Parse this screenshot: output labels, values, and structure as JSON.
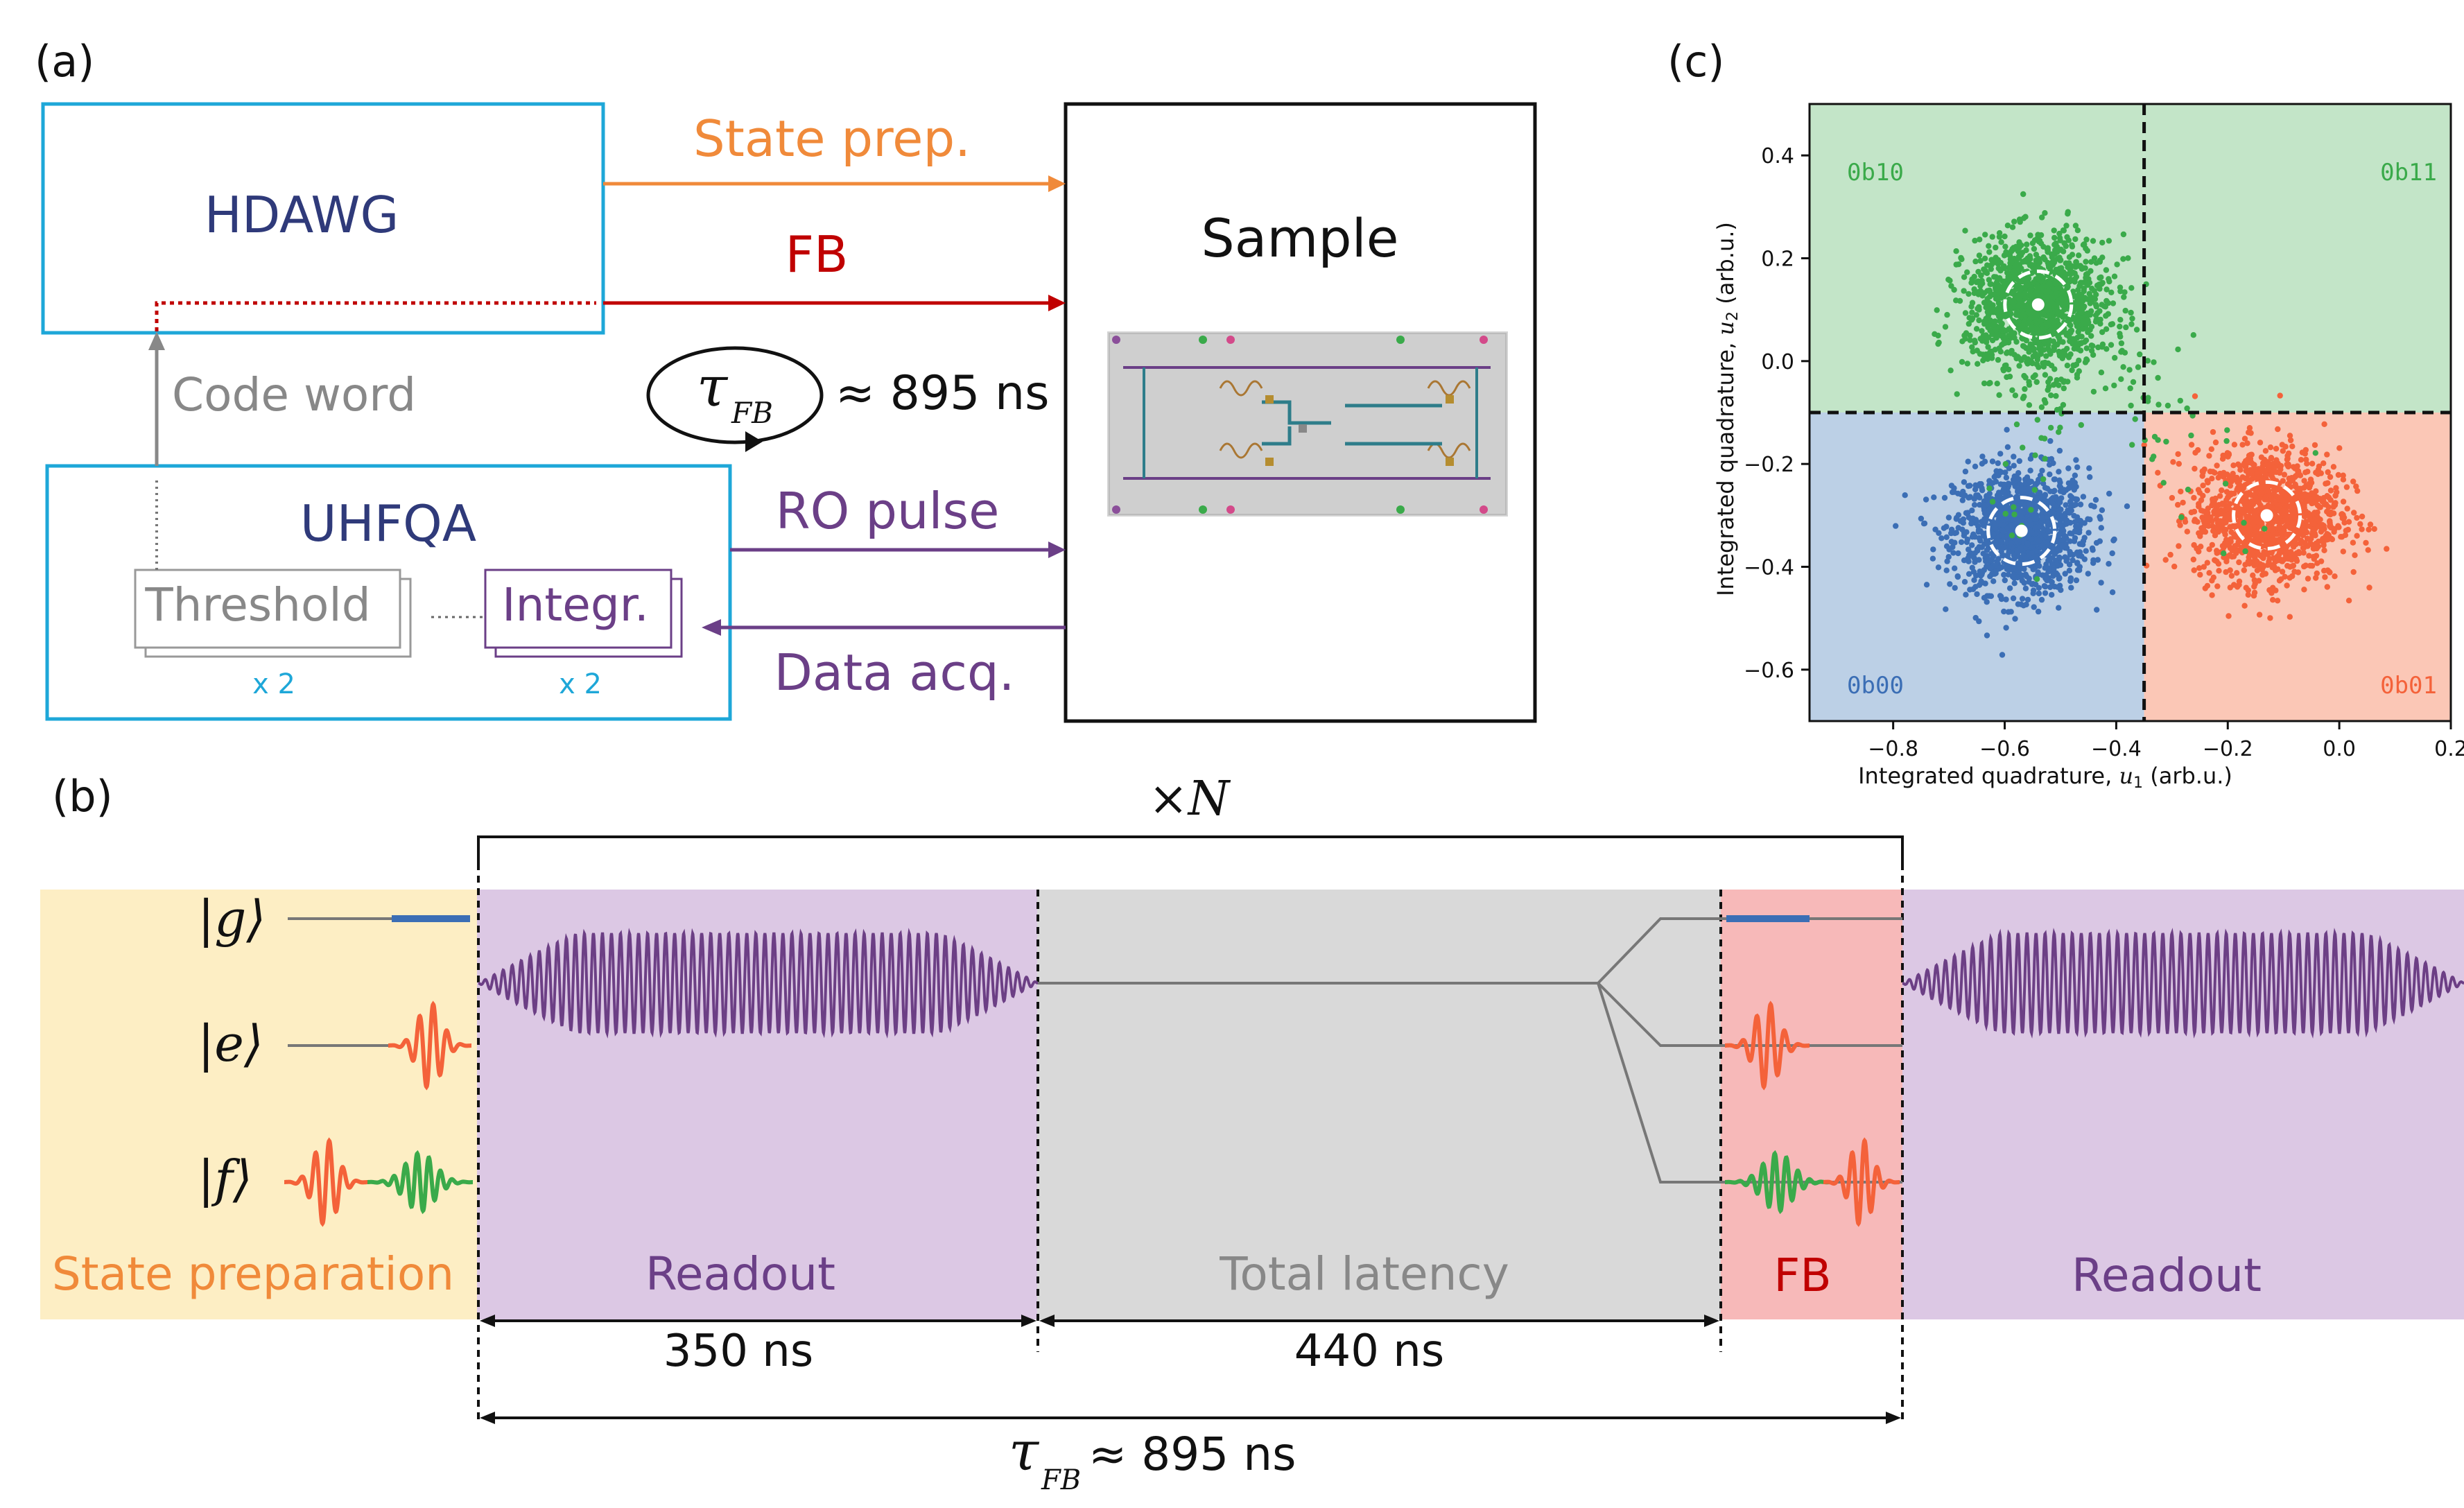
{
  "panel_a": {
    "label": "(a)",
    "hdawg": "HDAWG",
    "uhfqa": "UHFQA",
    "sample": "Sample",
    "state_prep": "State prep.",
    "fb": "FB",
    "code_word": "Code word",
    "tau_symbol": "τ",
    "tau_sub": "FB",
    "latency": "≈ 895 ns",
    "ro_pulse": "RO pulse",
    "data_acq": "Data acq.",
    "threshold": "Threshold",
    "integr": "Integr.",
    "mult_threshold": "x 2",
    "mult_integr": "x 2",
    "colors": {
      "box": "#1ea7d8",
      "navy": "#2f3a7a",
      "orange": "#f08a3a",
      "red": "#c00000",
      "purple": "#6b3f87",
      "gray": "#888888"
    }
  },
  "panel_b": {
    "label": "(b)",
    "repeat": "×N",
    "ket_g": "|g⟩",
    "ket_e": "|e⟩",
    "ket_f": "|f⟩",
    "sec_prep": "State preparation",
    "sec_readout1": "Readout",
    "sec_latency": "Total latency",
    "sec_fb": "FB",
    "sec_readout2": "Readout",
    "dur_readout": "350 ns",
    "dur_latency": "440 ns",
    "tau_symbol": "τ",
    "tau_sub": "FB",
    "tau_value": "≈ 895 ns",
    "colors": {
      "prep_bg": "#fdeec4",
      "readout_bg": "#dcc8e4",
      "latency_bg": "#d9d9d9",
      "fb_bg": "#f7b9b9",
      "pulse_purple": "#6c3f85",
      "pulse_red": "#f4623a",
      "pulse_green": "#3aaa4a",
      "pulse_blue": "#3b6eb5"
    }
  },
  "panel_c": {
    "label": "(c)",
    "xlabel_text": "Integrated quadrature, ",
    "xlabel_var": "u",
    "xlabel_sub": "1",
    "xlabel_unit": " (arb.u.)",
    "ylabel_text": "Integrated quadrature, ",
    "ylabel_var": "u",
    "ylabel_sub": "2",
    "ylabel_unit": " (arb.u.)"
  },
  "chart_data": {
    "type": "scatter",
    "xlim": [
      -0.95,
      0.2
    ],
    "ylim": [
      -0.7,
      0.5
    ],
    "x_ticks": [
      "−0.8",
      "−0.6",
      "−0.4",
      "−0.2",
      "0.0",
      "0.2"
    ],
    "y_ticks": [
      "0.4",
      "0.2",
      "0.0",
      "−0.2",
      "−0.4",
      "−0.6"
    ],
    "x_tick_values": [
      -0.8,
      -0.6,
      -0.4,
      -0.2,
      0.0,
      0.2
    ],
    "y_tick_values": [
      0.4,
      0.2,
      0.0,
      -0.2,
      -0.4,
      -0.6
    ],
    "thresholds": {
      "x": -0.35,
      "y": -0.1
    },
    "regions": [
      {
        "label": "0b10",
        "quadrant": "top-left",
        "color": "#c3e5c8",
        "text_color": "#3aaa4a"
      },
      {
        "label": "0b11",
        "quadrant": "top-right",
        "color": "#c3e5c8",
        "text_color": "#3aaa4a"
      },
      {
        "label": "0b00",
        "quadrant": "bottom-left",
        "color": "#bcd0e6",
        "text_color": "#3b6eb5"
      },
      {
        "label": "0b01",
        "quadrant": "bottom-right",
        "color": "#fbc7b6",
        "text_color": "#f4623a"
      }
    ],
    "series": [
      {
        "color": "#3b6eb5",
        "center": [
          -0.57,
          -0.33
        ],
        "spread": 0.06
      },
      {
        "color": "#f4623a",
        "center": [
          -0.13,
          -0.3
        ],
        "spread": 0.065
      },
      {
        "color": "#3aaa4a",
        "center": [
          -0.54,
          0.11
        ],
        "spread": 0.065
      }
    ],
    "grid": false
  }
}
